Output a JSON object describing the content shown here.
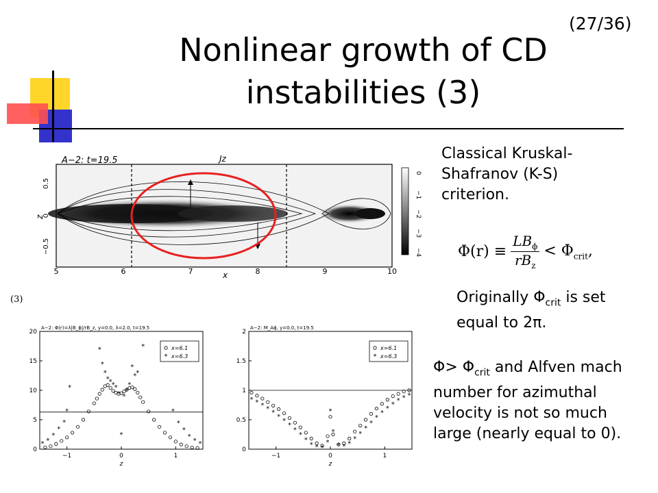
{
  "slide_number": "(27/36)",
  "title": "Nonlinear growth of CD instabilities (3)",
  "text1": "Classical Kruskal-Shafranov (K-S) criterion.",
  "formula": {
    "lhs": "Φ(r) ≡",
    "numerator": "LB",
    "numerator_sub": "ϕ",
    "denominator": "rB",
    "denominator_sub": "z",
    "rhs": "< Φ",
    "rhs_sub": "crit"
  },
  "text2": {
    "a": "Originally Φ",
    "sub": "crit",
    "b": " is set equal to 2π."
  },
  "text3": {
    "a": "Φ> Φ",
    "sub": "crit",
    "b": " and Alfven mach number for azimuthal velocity is not so much large (nearly equal to 0)."
  },
  "panel_label": "(3)",
  "contour_plot": {
    "header": "A−2:  t=19.5",
    "field_label": "Jz",
    "ylabel": "z",
    "xlabel": "x",
    "x_ticks": [
      "5",
      "6",
      "7",
      "8",
      "9",
      "10"
    ],
    "y_ticks": [
      "0.5",
      "0",
      "−0.5"
    ],
    "colorbar_ticks": [
      "0",
      "−1",
      "−2",
      "−3",
      "−4"
    ]
  },
  "chart_data": [
    {
      "type": "scatter",
      "title": "A−2: Φ(r)=λ|B_ϕ|/rB_z, y=0.0, λ=2.0, t=19.5",
      "xlabel": "z",
      "ylabel": "",
      "xlim": [
        -1.5,
        1.5
      ],
      "ylim": [
        0,
        20
      ],
      "x_ticks": [
        "−1",
        "0",
        "1"
      ],
      "y_ticks": [
        "0",
        "5",
        "10",
        "15",
        "20"
      ],
      "reference_line": 6.3,
      "series": [
        {
          "name": "x=6.1",
          "marker": "circle",
          "points": [
            [
              -1.4,
              0.3
            ],
            [
              -1.3,
              0.5
            ],
            [
              -1.2,
              0.9
            ],
            [
              -1.1,
              1.4
            ],
            [
              -1.0,
              2.0
            ],
            [
              -0.9,
              2.8
            ],
            [
              -0.8,
              3.8
            ],
            [
              -0.7,
              5.0
            ],
            [
              -0.6,
              6.4
            ],
            [
              -0.5,
              7.8
            ],
            [
              -0.45,
              8.6
            ],
            [
              -0.4,
              9.4
            ],
            [
              -0.35,
              10.1
            ],
            [
              -0.3,
              10.7
            ],
            [
              -0.25,
              10.9
            ],
            [
              -0.2,
              10.4
            ],
            [
              -0.15,
              9.9
            ],
            [
              -0.1,
              9.6
            ],
            [
              -0.05,
              9.4
            ],
            [
              0.0,
              9.5
            ],
            [
              0.05,
              9.8
            ],
            [
              0.1,
              10.1
            ],
            [
              0.15,
              10.4
            ],
            [
              0.2,
              10.5
            ],
            [
              0.25,
              10.2
            ],
            [
              0.3,
              9.6
            ],
            [
              0.35,
              8.8
            ],
            [
              0.4,
              8.0
            ],
            [
              0.5,
              6.4
            ],
            [
              0.6,
              5.0
            ],
            [
              0.7,
              3.8
            ],
            [
              0.8,
              2.8
            ],
            [
              0.9,
              2.0
            ],
            [
              1.0,
              1.3
            ],
            [
              1.1,
              0.8
            ],
            [
              1.2,
              0.5
            ],
            [
              1.3,
              0.3
            ],
            [
              1.4,
              0.2
            ]
          ]
        },
        {
          "name": "x=6.3",
          "marker": "star",
          "points": [
            [
              -1.45,
              1.0
            ],
            [
              -1.35,
              1.5
            ],
            [
              -1.25,
              2.4
            ],
            [
              -1.15,
              3.5
            ],
            [
              -1.05,
              4.6
            ],
            [
              -1.0,
              6.5
            ],
            [
              -0.95,
              10.5
            ],
            [
              -0.4,
              17.0
            ],
            [
              -0.35,
              14.5
            ],
            [
              -0.3,
              13.0
            ],
            [
              -0.25,
              12.0
            ],
            [
              -0.2,
              11.5
            ],
            [
              -0.15,
              11.0
            ],
            [
              -0.1,
              10.5
            ],
            [
              -0.05,
              9.5
            ],
            [
              0.0,
              2.5
            ],
            [
              0.05,
              9.0
            ],
            [
              0.1,
              10.0
            ],
            [
              0.15,
              11.0
            ],
            [
              0.2,
              14.0
            ],
            [
              0.25,
              12.5
            ],
            [
              0.3,
              13.0
            ],
            [
              0.4,
              17.5
            ],
            [
              0.95,
              6.5
            ],
            [
              1.05,
              4.5
            ],
            [
              1.15,
              3.3
            ],
            [
              1.25,
              2.2
            ],
            [
              1.35,
              1.5
            ],
            [
              1.45,
              1.0
            ]
          ]
        }
      ]
    },
    {
      "type": "scatter",
      "title": "A−2: M_Aϕ, y=0.0, t=19.5",
      "xlabel": "z",
      "ylabel": "",
      "xlim": [
        -1.5,
        1.5
      ],
      "ylim": [
        0,
        2
      ],
      "x_ticks": [
        "−1",
        "0",
        "1"
      ],
      "y_ticks": [
        "0",
        "0.5",
        "1",
        "1.5",
        "2"
      ],
      "reference_line": 1.0,
      "series": [
        {
          "name": "x=6.1",
          "marker": "circle",
          "points": [
            [
              -1.45,
              0.96
            ],
            [
              -1.35,
              0.91
            ],
            [
              -1.25,
              0.86
            ],
            [
              -1.15,
              0.8
            ],
            [
              -1.05,
              0.74
            ],
            [
              -0.95,
              0.68
            ],
            [
              -0.85,
              0.61
            ],
            [
              -0.75,
              0.53
            ],
            [
              -0.65,
              0.45
            ],
            [
              -0.55,
              0.37
            ],
            [
              -0.45,
              0.28
            ],
            [
              -0.35,
              0.18
            ],
            [
              -0.25,
              0.1
            ],
            [
              -0.15,
              0.06
            ],
            [
              -0.05,
              0.22
            ],
            [
              0.0,
              0.55
            ],
            [
              0.05,
              0.25
            ],
            [
              0.15,
              0.08
            ],
            [
              0.25,
              0.1
            ],
            [
              0.35,
              0.18
            ],
            [
              0.45,
              0.3
            ],
            [
              0.55,
              0.4
            ],
            [
              0.65,
              0.5
            ],
            [
              0.75,
              0.6
            ],
            [
              0.85,
              0.69
            ],
            [
              0.95,
              0.77
            ],
            [
              1.05,
              0.84
            ],
            [
              1.15,
              0.9
            ],
            [
              1.25,
              0.94
            ],
            [
              1.35,
              0.98
            ],
            [
              1.45,
              1.0
            ]
          ]
        },
        {
          "name": "x=6.3",
          "marker": "star",
          "points": [
            [
              -1.45,
              0.85
            ],
            [
              -1.35,
              0.8
            ],
            [
              -1.25,
              0.75
            ],
            [
              -1.15,
              0.69
            ],
            [
              -1.05,
              0.63
            ],
            [
              -0.95,
              0.56
            ],
            [
              -0.85,
              0.49
            ],
            [
              -0.75,
              0.41
            ],
            [
              -0.65,
              0.33
            ],
            [
              -0.55,
              0.25
            ],
            [
              -0.45,
              0.16
            ],
            [
              -0.35,
              0.08
            ],
            [
              -0.25,
              0.04
            ],
            [
              -0.15,
              0.03
            ],
            [
              -0.05,
              0.12
            ],
            [
              0.0,
              0.65
            ],
            [
              0.05,
              0.3
            ],
            [
              0.15,
              0.07
            ],
            [
              0.25,
              0.05
            ],
            [
              0.35,
              0.1
            ],
            [
              0.45,
              0.18
            ],
            [
              0.55,
              0.27
            ],
            [
              0.65,
              0.36
            ],
            [
              0.75,
              0.45
            ],
            [
              0.85,
              0.54
            ],
            [
              0.95,
              0.62
            ],
            [
              1.05,
              0.7
            ],
            [
              1.15,
              0.77
            ],
            [
              1.25,
              0.83
            ],
            [
              1.35,
              0.88
            ],
            [
              1.45,
              0.92
            ]
          ]
        }
      ]
    }
  ]
}
